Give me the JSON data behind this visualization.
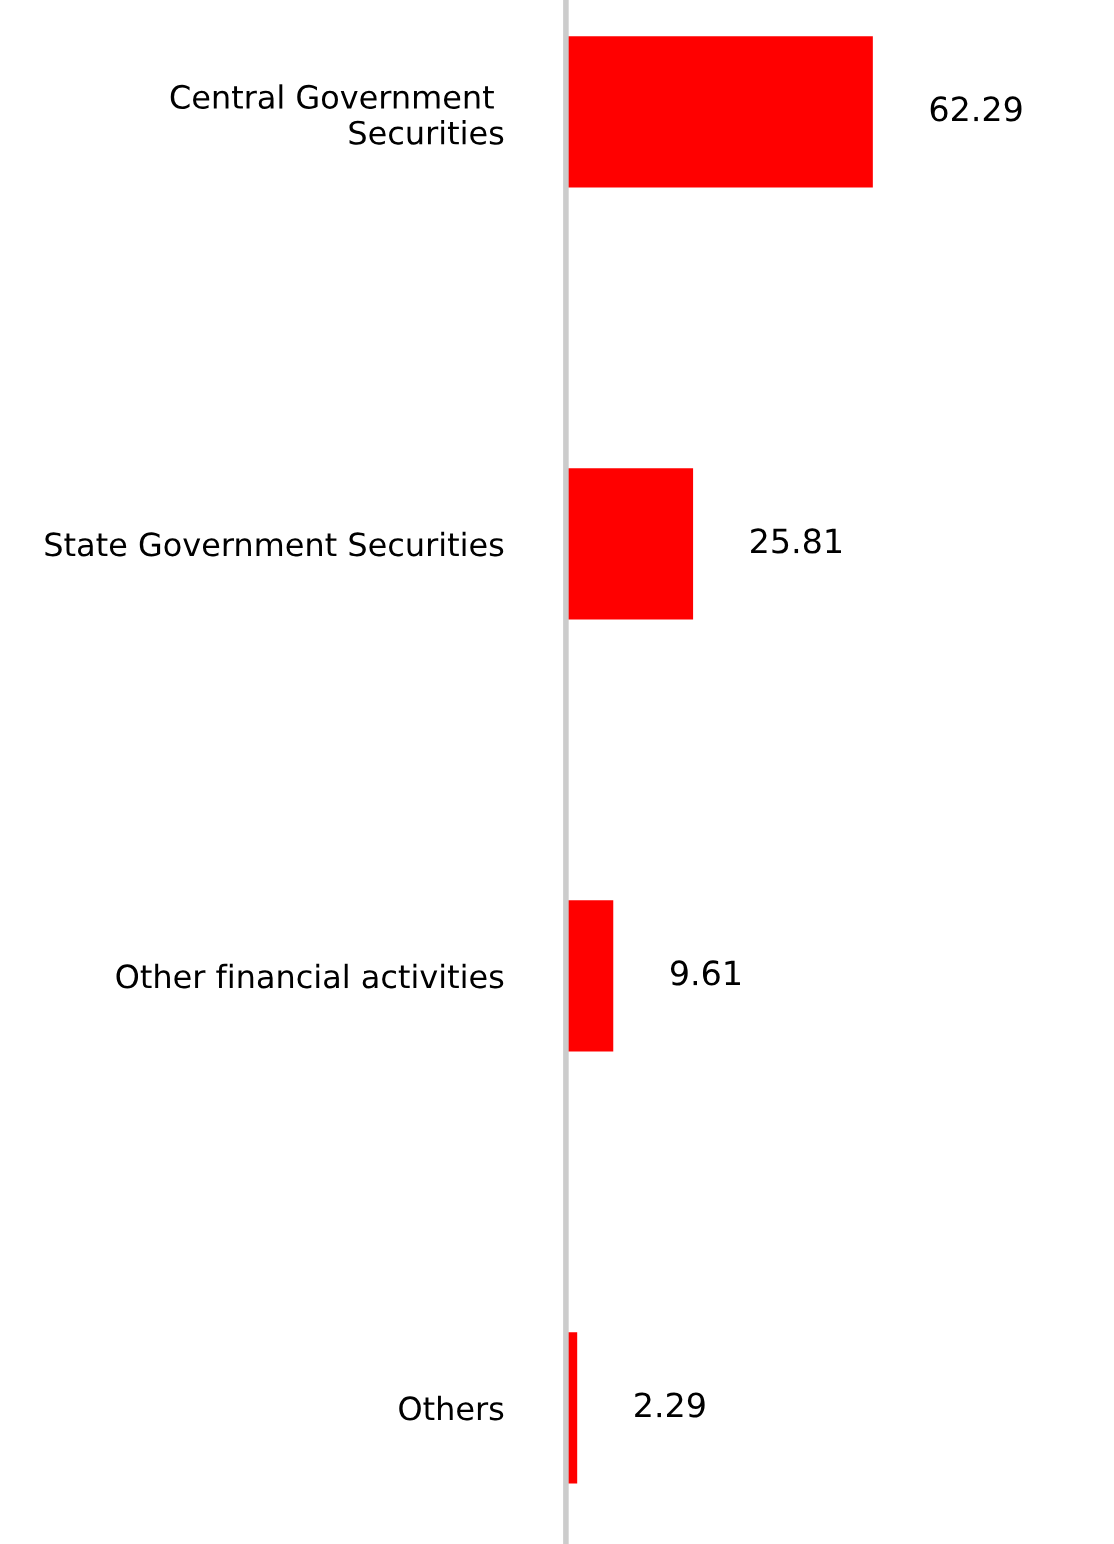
{
  "chart_data": {
    "type": "bar",
    "orientation": "horizontal",
    "categories": [
      "Central Government \nSecurities",
      "State Government Securities",
      "Other financial activities",
      "Others"
    ],
    "values": [
      62.29,
      25.81,
      9.61,
      2.29
    ],
    "color": "#ff0000",
    "data_labels": true,
    "grid": false,
    "legend": false
  }
}
